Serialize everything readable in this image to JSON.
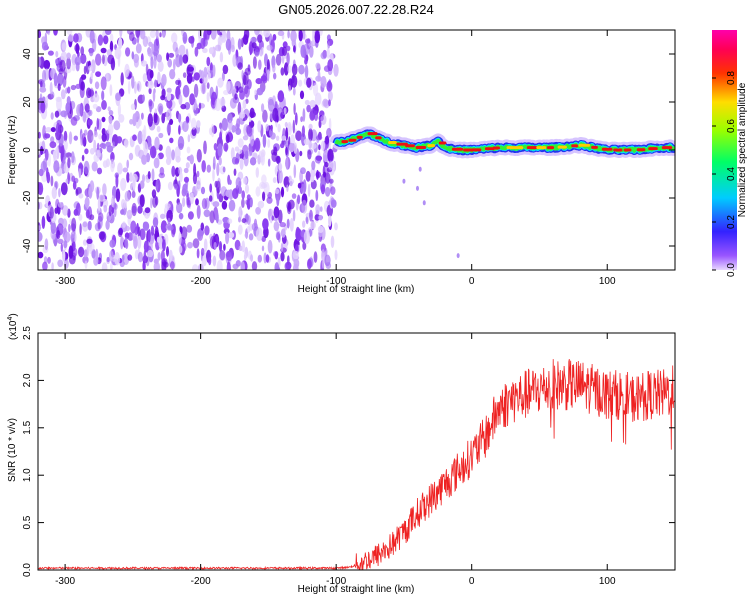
{
  "title": "GN05.2026.007.22.28.R24",
  "colors": {
    "spectrogram_noise": "#7a22e8",
    "snr_line": "#ee2222",
    "axis": "#000000"
  },
  "chart_data": [
    {
      "type": "heatmap",
      "title": "GN05.2026.007.22.28.R24",
      "xlabel": "Height of straight line (km)",
      "ylabel": "Frequency (Hz)",
      "xlim": [
        -320,
        150
      ],
      "ylim": [
        -50,
        50
      ],
      "xticks": [
        -300,
        -200,
        -100,
        0,
        100
      ],
      "yticks": [
        -40,
        -20,
        0,
        20,
        40
      ],
      "grid": false,
      "description_noise_region_x": [
        -320,
        -100
      ],
      "signal_trace": {
        "x": [
          -100,
          -90,
          -80,
          -75,
          -70,
          -60,
          -50,
          -40,
          -30,
          -25,
          -20,
          -10,
          0,
          20,
          40,
          60,
          80,
          100,
          120,
          140,
          150
        ],
        "y": [
          3,
          4,
          6,
          7,
          5,
          3,
          2,
          1,
          2,
          4,
          1,
          0,
          0,
          1,
          1,
          1,
          2,
          0,
          0,
          1,
          1
        ]
      },
      "colorbar": {
        "label": "Normalized spectral amplitude",
        "range": [
          0,
          1
        ],
        "ticks": [
          0.0,
          0.2,
          0.4,
          0.6,
          0.8
        ],
        "tick_labels": [
          "0.0",
          "0.2",
          "0.4",
          "0.6",
          "0.8"
        ],
        "colormap": "rainbow (violet→blue→cyan→green→yellow→red→magenta)"
      }
    },
    {
      "type": "line",
      "title": "",
      "xlabel": "Height of straight line (km)",
      "ylabel": "SNR (10 * v/v)",
      "scale_label": "(x10",
      "scale_exponent": "4",
      "scale_close": ")",
      "xlim": [
        -320,
        150
      ],
      "ylim": [
        0,
        2.5
      ],
      "xticks": [
        -300,
        -200,
        -100,
        0,
        100
      ],
      "yticks": [
        0.0,
        0.5,
        1.0,
        1.5,
        2.0,
        2.5
      ],
      "ytick_labels": [
        "0.0",
        "0.5",
        "1.0",
        "1.5",
        "2.0",
        "2.5"
      ],
      "grid": false,
      "series": [
        {
          "color": "#ee2222",
          "x": [
            -320,
            -250,
            -200,
            -150,
            -100,
            -90,
            -80,
            -70,
            -60,
            -50,
            -40,
            -30,
            -20,
            -10,
            0,
            10,
            20,
            30,
            40,
            50,
            60,
            70,
            80,
            90,
            100,
            110,
            120,
            130,
            140,
            150
          ],
          "values": [
            0.02,
            0.02,
            0.02,
            0.02,
            0.02,
            0.03,
            0.08,
            0.15,
            0.25,
            0.4,
            0.6,
            0.75,
            0.9,
            1.05,
            1.2,
            1.4,
            1.7,
            1.8,
            1.85,
            1.9,
            1.95,
            1.95,
            1.95,
            1.9,
            1.85,
            1.85,
            1.8,
            1.85,
            1.85,
            1.9
          ]
        }
      ]
    }
  ]
}
